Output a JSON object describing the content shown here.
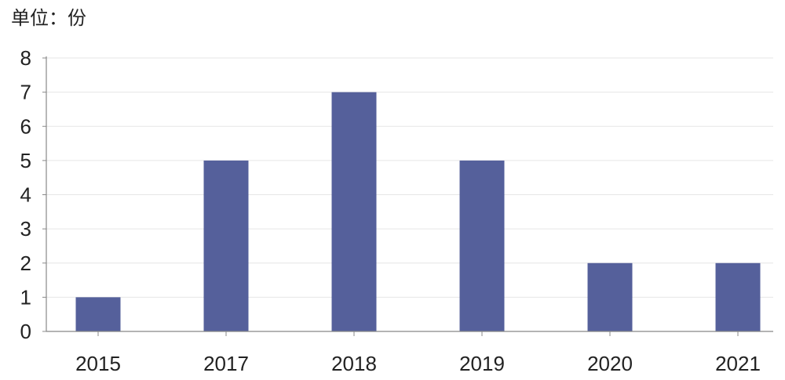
{
  "chart_data": {
    "type": "bar",
    "unit_label": "单位：份",
    "categories": [
      "2015",
      "2017",
      "2018",
      "2019",
      "2020",
      "2021"
    ],
    "values": [
      1,
      5,
      7,
      5,
      2,
      2
    ],
    "ylim": [
      0,
      8
    ],
    "yticks": [
      "0",
      "1",
      "2",
      "3",
      "4",
      "5",
      "6",
      "7",
      "8"
    ],
    "grid": true,
    "bar_color": "#55609b",
    "grid_color": "#e6e6e6"
  }
}
